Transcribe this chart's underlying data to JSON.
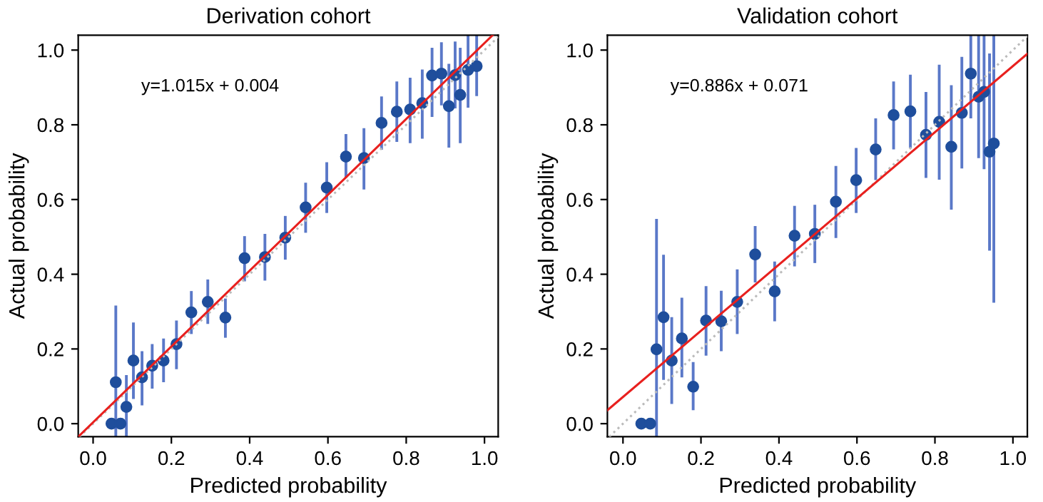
{
  "chart_data": [
    {
      "type": "scatter",
      "title": "Derivation cohort",
      "xlabel": "Predicted probability",
      "ylabel": "Actual probability",
      "annotations": [
        "y=1.015x + 0.004"
      ],
      "xlim": [
        -0.038,
        1.035
      ],
      "ylim": [
        -0.035,
        1.04
      ],
      "xticks": [
        {
          "value": 0,
          "label": "0.0"
        },
        {
          "value": 0.2,
          "label": "0.2"
        },
        {
          "value": 0.4,
          "label": "0.4"
        },
        {
          "value": 0.6,
          "label": "0.6"
        },
        {
          "value": 0.8,
          "label": "0.8"
        },
        {
          "value": 1,
          "label": "1.0"
        }
      ],
      "yticks": [
        {
          "value": 0,
          "label": "0.0"
        },
        {
          "value": 0.2,
          "label": "0.2"
        },
        {
          "value": 0.4,
          "label": "0.4"
        },
        {
          "value": 0.6,
          "label": "0.6"
        },
        {
          "value": 0.8,
          "label": "0.8"
        },
        {
          "value": 1,
          "label": "1.0"
        }
      ],
      "grid": false,
      "legend": false,
      "marker": "circle",
      "series": [
        {
          "type": "line",
          "color": "#bbbbbb",
          "line_style": "dotted",
          "marker": "none",
          "x": [
            -0.035,
            1.035
          ],
          "values": [
            -0.035,
            1.035
          ]
        },
        {
          "color": "#1f4e9c",
          "x": [
            0.047,
            0.058,
            0.07,
            0.085,
            0.103,
            0.125,
            0.151,
            0.18,
            0.213,
            0.251,
            0.293,
            0.338,
            0.387,
            0.439,
            0.491,
            0.543,
            0.597,
            0.646,
            0.692,
            0.737,
            0.776,
            0.81,
            0.841,
            0.866,
            0.89,
            0.909,
            0.925,
            0.938,
            0.958,
            0.98
          ],
          "values": [
            0,
            0.111,
            0,
            0.045,
            0.169,
            0.124,
            0.155,
            0.169,
            0.213,
            0.298,
            0.326,
            0.284,
            0.443,
            0.446,
            0.498,
            0.579,
            0.632,
            0.715,
            0.711,
            0.805,
            0.835,
            0.841,
            0.858,
            0.932,
            0.937,
            0.85,
            0.933,
            0.88,
            0.947,
            0.957
          ],
          "errors": [
            null,
            [
              -0.035,
              0.316
            ],
            null,
            [
              -0.035,
              0.13
            ],
            [
              0.066,
              0.271
            ],
            [
              0.049,
              0.194
            ],
            [
              0.094,
              0.213
            ],
            [
              0.111,
              0.228
            ],
            [
              0.146,
              0.276
            ],
            [
              0.24,
              0.355
            ],
            [
              0.267,
              0.386
            ],
            [
              0.23,
              0.335
            ],
            [
              0.381,
              0.502
            ],
            [
              0.383,
              0.508
            ],
            [
              0.439,
              0.556
            ],
            [
              0.511,
              0.645
            ],
            [
              0.564,
              0.7
            ],
            [
              0.658,
              0.775
            ],
            [
              0.627,
              0.791
            ],
            [
              0.733,
              0.876
            ],
            [
              0.754,
              0.916
            ],
            [
              0.751,
              0.926
            ],
            [
              0.763,
              0.948
            ],
            [
              0.821,
              1.006
            ],
            [
              0.852,
              1.021
            ],
            [
              0.739,
              0.963
            ],
            [
              0.844,
              1.023
            ],
            [
              0.751,
              1.006
            ],
            [
              0.846,
              1.04
            ],
            [
              0.877,
              1.04
            ]
          ]
        },
        {
          "type": "line",
          "color": "#e8201e",
          "line_style": "solid",
          "marker": "none",
          "x": [
            -0.038,
            1.021
          ],
          "values": [
            -0.035,
            1.04
          ]
        }
      ]
    },
    {
      "type": "scatter",
      "title": "Validation cohort",
      "xlabel": "Predicted probability",
      "ylabel": "Actual probability",
      "annotations": [
        "y=0.886x + 0.071"
      ],
      "xlim": [
        -0.04,
        1.037
      ],
      "ylim": [
        -0.035,
        1.04
      ],
      "xticks": [
        {
          "value": 0,
          "label": "0.0"
        },
        {
          "value": 0.2,
          "label": "0.2"
        },
        {
          "value": 0.4,
          "label": "0.4"
        },
        {
          "value": 0.6,
          "label": "0.6"
        },
        {
          "value": 0.8,
          "label": "0.8"
        },
        {
          "value": 1,
          "label": "1.0"
        }
      ],
      "yticks": [
        {
          "value": 0,
          "label": "0.0"
        },
        {
          "value": 0.2,
          "label": "0.2"
        },
        {
          "value": 0.4,
          "label": "0.4"
        },
        {
          "value": 0.6,
          "label": "0.6"
        },
        {
          "value": 0.8,
          "label": "0.8"
        },
        {
          "value": 1,
          "label": "1.0"
        }
      ],
      "grid": false,
      "legend": false,
      "marker": "circle",
      "series": [
        {
          "type": "line",
          "color": "#bbbbbb",
          "line_style": "dotted",
          "marker": "none",
          "x": [
            -0.035,
            1.037
          ],
          "values": [
            -0.035,
            1.037
          ]
        },
        {
          "color": "#1f4e9c",
          "x": [
            0.047,
            0.07,
            0.086,
            0.104,
            0.125,
            0.151,
            0.18,
            0.213,
            0.252,
            0.293,
            0.339,
            0.389,
            0.44,
            0.492,
            0.546,
            0.598,
            0.648,
            0.694,
            0.737,
            0.777,
            0.811,
            0.842,
            0.869,
            0.892,
            0.912,
            0.926,
            0.94,
            0.951
          ],
          "values": [
            0,
            0,
            0.199,
            0.285,
            0.169,
            0.228,
            0.099,
            0.276,
            0.274,
            0.326,
            0.453,
            0.354,
            0.503,
            0.508,
            0.594,
            0.652,
            0.734,
            0.826,
            0.836,
            0.773,
            0.808,
            0.741,
            0.832,
            0.937,
            0.875,
            0.888,
            0.728,
            0.75
          ],
          "errors": [
            null,
            null,
            [
              -0.035,
              0.548
            ],
            [
              0.117,
              0.452
            ],
            [
              0.053,
              0.285
            ],
            [
              0.124,
              0.337
            ],
            [
              0.036,
              0.165
            ],
            [
              0.182,
              0.368
            ],
            [
              0.194,
              0.356
            ],
            [
              0.24,
              0.413
            ],
            [
              0.378,
              0.529
            ],
            [
              0.274,
              0.434
            ],
            [
              0.421,
              0.583
            ],
            [
              0.43,
              0.586
            ],
            [
              0.497,
              0.69
            ],
            [
              0.564,
              0.738
            ],
            [
              0.652,
              0.817
            ],
            [
              0.734,
              0.916
            ],
            [
              0.738,
              0.934
            ],
            [
              0.658,
              0.888
            ],
            [
              0.653,
              0.961
            ],
            [
              0.573,
              0.906
            ],
            [
              0.683,
              0.982
            ],
            [
              0.817,
              1.04
            ],
            [
              0.711,
              1.04
            ],
            [
              0.681,
              1.04
            ],
            [
              0.463,
              0.991
            ],
            [
              0.324,
              1.04
            ]
          ]
        },
        {
          "type": "line",
          "color": "#e8201e",
          "line_style": "solid",
          "marker": "none",
          "x": [
            -0.04,
            1.037
          ],
          "values": [
            0.036,
            0.99
          ]
        }
      ]
    }
  ]
}
